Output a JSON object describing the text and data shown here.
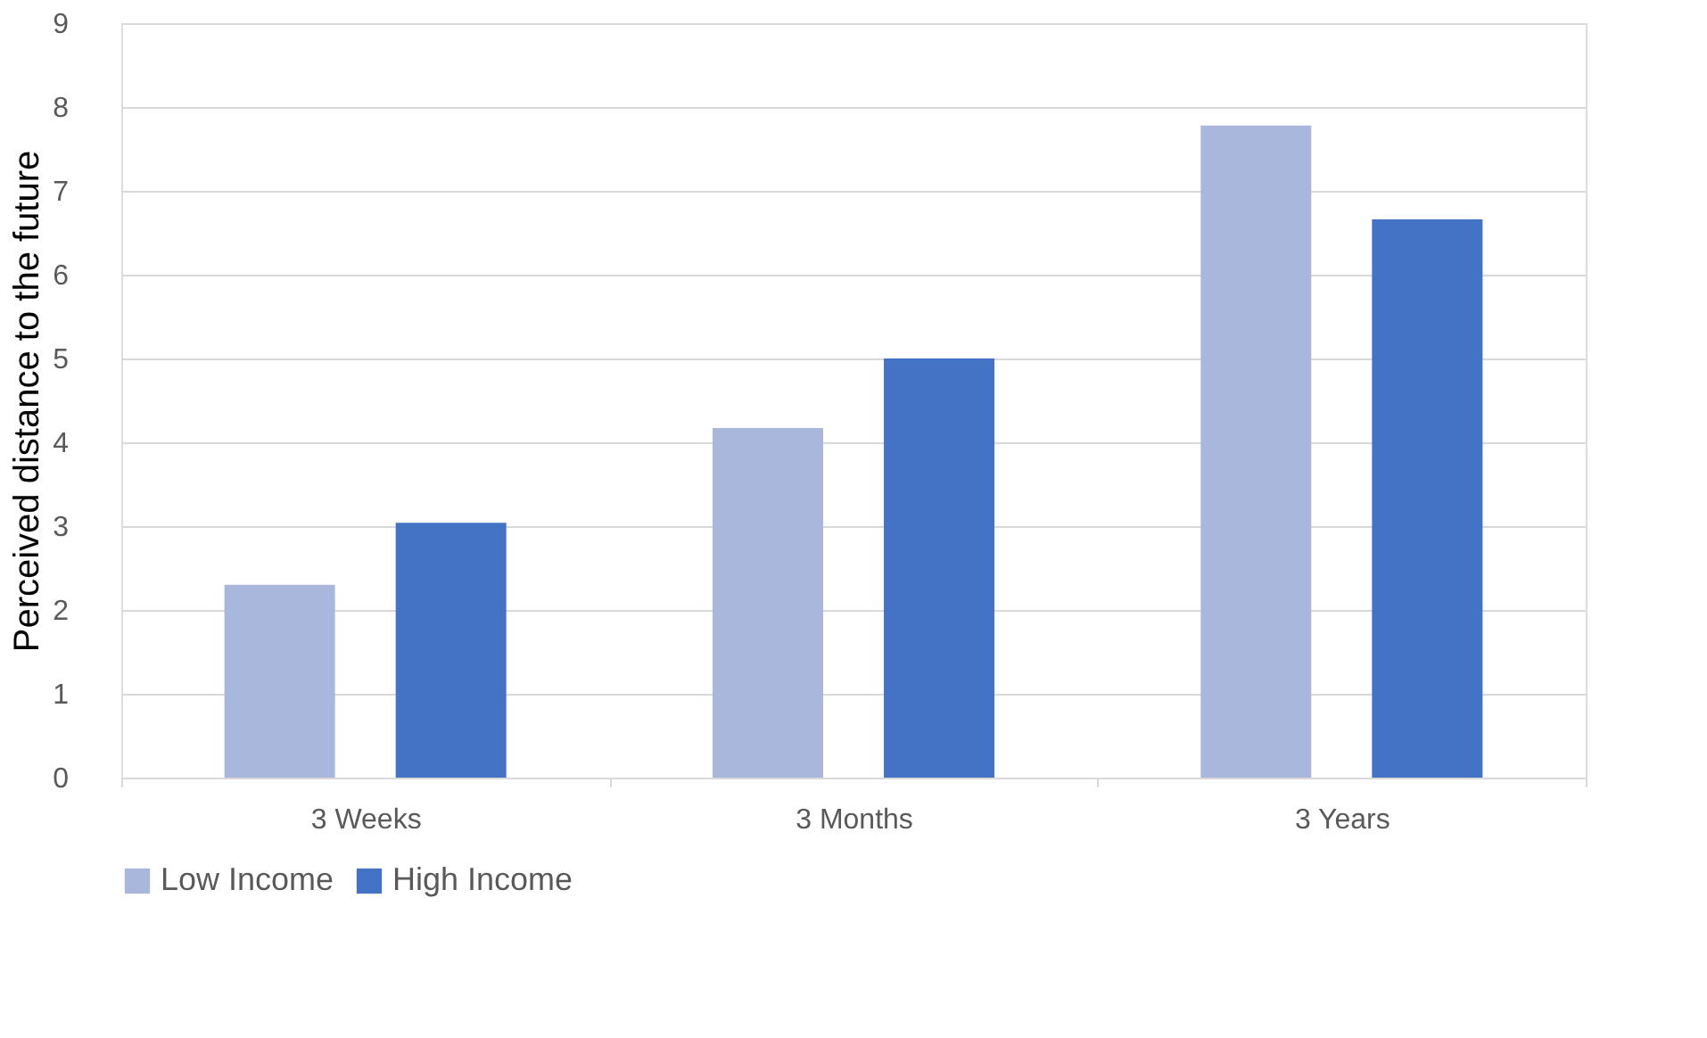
{
  "chart_data": {
    "type": "bar",
    "ylabel": "Perceived distance to the future",
    "categories": [
      "3 Weeks",
      "3 Months",
      "3 Years"
    ],
    "series": [
      {
        "name": "Low Income",
        "color": "#a9b7dc",
        "values": [
          2.3,
          4.17,
          7.78
        ]
      },
      {
        "name": "High Income",
        "color": "#4472c4",
        "values": [
          3.04,
          5.0,
          6.66
        ]
      }
    ],
    "ylim": [
      0,
      9
    ],
    "yticks": [
      0,
      1,
      2,
      3,
      4,
      5,
      6,
      7,
      8,
      9
    ],
    "grid": "y",
    "legend": "bottom"
  }
}
